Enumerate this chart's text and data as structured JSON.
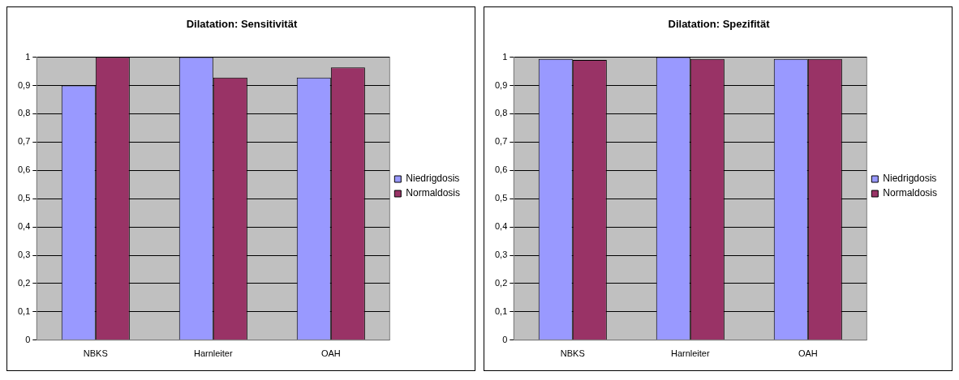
{
  "chart_data": [
    {
      "type": "bar",
      "title": "Dilatation: Sensitivität",
      "categories": [
        "NBKS",
        "Harnleiter",
        "OAH"
      ],
      "series": [
        {
          "name": "Niedrigdosis",
          "color": "#9999ff",
          "values": [
            0.9,
            1.0,
            0.928
          ]
        },
        {
          "name": "Normaldosis",
          "color": "#993366",
          "values": [
            1.0,
            0.928,
            0.964
          ]
        }
      ],
      "ylim": [
        0,
        1
      ],
      "yticks": [
        {
          "value": 0,
          "label": "0"
        },
        {
          "value": 0.1,
          "label": "0,1"
        },
        {
          "value": 0.2,
          "label": "0,2"
        },
        {
          "value": 0.3,
          "label": "0,3"
        },
        {
          "value": 0.4,
          "label": "0,4"
        },
        {
          "value": 0.5,
          "label": "0,5"
        },
        {
          "value": 0.6,
          "label": "0,6"
        },
        {
          "value": 0.7,
          "label": "0,7"
        },
        {
          "value": 0.8,
          "label": "0,8"
        },
        {
          "value": 0.9,
          "label": "0,9"
        },
        {
          "value": 1,
          "label": "1"
        }
      ],
      "grid": "y",
      "legend": "right"
    },
    {
      "type": "bar",
      "title": "Dilatation: Spezifität",
      "categories": [
        "NBKS",
        "Harnleiter",
        "OAH"
      ],
      "series": [
        {
          "name": "Niedrigdosis",
          "color": "#9999ff",
          "values": [
            0.994,
            1.0,
            0.994
          ]
        },
        {
          "name": "Normaldosis",
          "color": "#993366",
          "values": [
            0.99,
            0.994,
            0.994
          ]
        }
      ],
      "ylim": [
        0,
        1
      ],
      "yticks": [
        {
          "value": 0,
          "label": "0"
        },
        {
          "value": 0.1,
          "label": "0,1"
        },
        {
          "value": 0.2,
          "label": "0,2"
        },
        {
          "value": 0.3,
          "label": "0,3"
        },
        {
          "value": 0.4,
          "label": "0,4"
        },
        {
          "value": 0.5,
          "label": "0,5"
        },
        {
          "value": 0.6,
          "label": "0,6"
        },
        {
          "value": 0.7,
          "label": "0,7"
        },
        {
          "value": 0.8,
          "label": "0,8"
        },
        {
          "value": 0.9,
          "label": "0,9"
        },
        {
          "value": 1,
          "label": "1"
        }
      ],
      "grid": "y",
      "legend": "right"
    }
  ]
}
